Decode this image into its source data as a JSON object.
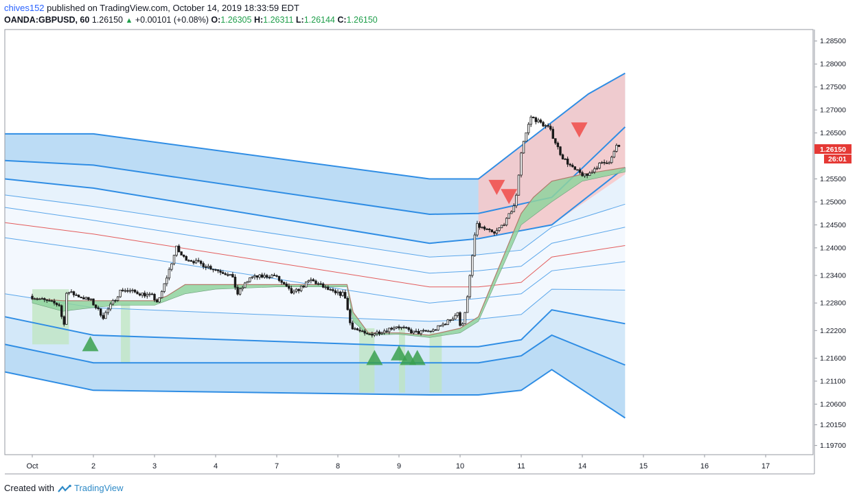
{
  "header": {
    "user": "chives152",
    "published_text": "published on TradingView.com, October 14, 2019 18:33:59 EDT",
    "symbol": "OANDA:GBPUSD, 60",
    "last": "1.26150",
    "change": "+0.00101 (+0.08%)",
    "open_label": "O:",
    "open": "1.26305",
    "high_label": "H:",
    "high": "1.26311",
    "low_label": "L:",
    "low": "1.26144",
    "close_label": "C:",
    "close": "1.26150"
  },
  "footer": {
    "created_with": "Created with",
    "brand": "TradingView"
  },
  "colors": {
    "band_outer": "#bcdcf5",
    "band_mid": "#d3e8f9",
    "band_inner": "#e7f2fc",
    "band_core": "#f3f8fe",
    "band_line": "#2f8de4",
    "thin_line": "#5aa6ea",
    "basis": "#e35b5b",
    "cloud_green": "#8fd49e",
    "cloud_red": "#f2a7a7",
    "zone_red": "#f8c8c8",
    "zone_green": "#bfe6bf",
    "candle": "#1a1a1a",
    "arrow_up": "#3aa04f",
    "arrow_down": "#ef5350",
    "price_label": "#e53935"
  },
  "chart_data": {
    "type": "line",
    "symbol": "OANDA:GBPUSD",
    "interval": "60",
    "ylim": [
      1.195,
      1.2875
    ],
    "x_ticks": [
      "Oct",
      "2",
      "3",
      "4",
      "7",
      "8",
      "9",
      "10",
      "11",
      "14",
      "15",
      "16",
      "17"
    ],
    "y_ticks": [
      "1.28500",
      "1.28000",
      "1.27500",
      "1.27000",
      "1.26500",
      "1.26150",
      "1.25500",
      "1.25000",
      "1.24500",
      "1.24000",
      "1.23400",
      "1.22800",
      "1.22200",
      "1.21600",
      "1.21100",
      "1.20600",
      "1.20150",
      "1.19700"
    ],
    "last_price_label": "1.26150",
    "countdown_label": "26:01",
    "price_path": [
      [
        0.0,
        1.2295
      ],
      [
        0.5,
        1.2275
      ],
      [
        0.55,
        1.2215
      ],
      [
        0.6,
        1.2305
      ],
      [
        1.0,
        1.2285
      ],
      [
        1.2,
        1.225
      ],
      [
        1.5,
        1.231
      ],
      [
        2.0,
        1.2295
      ],
      [
        2.1,
        1.228
      ],
      [
        2.4,
        1.24
      ],
      [
        2.5,
        1.238
      ],
      [
        3.0,
        1.2355
      ],
      [
        3.3,
        1.234
      ],
      [
        3.4,
        1.23
      ],
      [
        3.6,
        1.2335
      ],
      [
        4.0,
        1.234
      ],
      [
        4.3,
        1.23
      ],
      [
        4.6,
        1.233
      ],
      [
        5.0,
        1.23
      ],
      [
        5.15,
        1.23
      ],
      [
        5.25,
        1.223
      ],
      [
        5.5,
        1.221
      ],
      [
        5.8,
        1.222
      ],
      [
        6.0,
        1.223
      ],
      [
        6.3,
        1.2215
      ],
      [
        6.6,
        1.222
      ],
      [
        6.9,
        1.2245
      ],
      [
        7.0,
        1.226
      ],
      [
        7.05,
        1.222
      ],
      [
        7.15,
        1.228
      ],
      [
        7.3,
        1.245
      ],
      [
        7.6,
        1.243
      ],
      [
        7.8,
        1.246
      ],
      [
        7.95,
        1.25
      ],
      [
        8.05,
        1.262
      ],
      [
        8.2,
        1.2685
      ],
      [
        8.5,
        1.266
      ],
      [
        8.7,
        1.26
      ],
      [
        8.9,
        1.257
      ],
      [
        9.1,
        1.2555
      ],
      [
        9.3,
        1.258
      ],
      [
        9.5,
        1.259
      ],
      [
        9.6,
        1.262
      ]
    ],
    "series": [
      {
        "role": "outer-upper",
        "points": [
          [
            -0.45,
            1.2648
          ],
          [
            1,
            1.2648
          ],
          [
            6.5,
            1.255
          ],
          [
            7.3,
            1.255
          ],
          [
            9.1,
            1.2735
          ],
          [
            9.7,
            1.278
          ]
        ]
      },
      {
        "role": "mid-upper",
        "points": [
          [
            -0.45,
            1.259
          ],
          [
            1,
            1.258
          ],
          [
            6.5,
            1.2473
          ],
          [
            7.3,
            1.2475
          ],
          [
            8.5,
            1.251
          ],
          [
            9.7,
            1.2663
          ]
        ]
      },
      {
        "role": "inner-upper",
        "points": [
          [
            -0.45,
            1.255
          ],
          [
            1,
            1.253
          ],
          [
            6.5,
            1.241
          ],
          [
            7.3,
            1.242
          ],
          [
            8.5,
            1.245
          ],
          [
            9.7,
            1.2575
          ]
        ]
      },
      {
        "role": "near-upper",
        "points": [
          [
            -0.45,
            1.2515
          ],
          [
            1,
            1.249
          ],
          [
            6.5,
            1.238
          ],
          [
            7.3,
            1.2385
          ],
          [
            8.0,
            1.2395
          ],
          [
            8.5,
            1.2445
          ],
          [
            9.7,
            1.2495
          ]
        ]
      },
      {
        "role": "upper-thin",
        "points": [
          [
            -0.45,
            1.2488
          ],
          [
            1,
            1.246
          ],
          [
            6.5,
            1.2345
          ],
          [
            7.3,
            1.235
          ],
          [
            8.0,
            1.236
          ],
          [
            8.5,
            1.241
          ],
          [
            9.7,
            1.2445
          ]
        ]
      },
      {
        "role": "basis",
        "points": [
          [
            -0.45,
            1.2455
          ],
          [
            1,
            1.243
          ],
          [
            6.5,
            1.2315
          ],
          [
            7.3,
            1.2315
          ],
          [
            8.0,
            1.2325
          ],
          [
            8.5,
            1.238
          ],
          [
            9.7,
            1.2405
          ]
        ]
      },
      {
        "role": "lower-thin",
        "points": [
          [
            -0.45,
            1.2422
          ],
          [
            1,
            1.2395
          ],
          [
            6.5,
            1.228
          ],
          [
            7.3,
            1.229
          ],
          [
            8.0,
            1.23
          ],
          [
            8.5,
            1.235
          ],
          [
            9.7,
            1.237
          ]
        ]
      },
      {
        "role": "near-lower",
        "points": [
          [
            -0.45,
            1.23
          ],
          [
            1,
            1.227
          ],
          [
            6.5,
            1.224
          ],
          [
            7.3,
            1.2245
          ],
          [
            8.0,
            1.2255
          ],
          [
            8.5,
            1.231
          ],
          [
            9.7,
            1.2308
          ]
        ]
      },
      {
        "role": "inner-lower",
        "points": [
          [
            -0.45,
            1.225
          ],
          [
            1,
            1.221
          ],
          [
            6.5,
            1.2185
          ],
          [
            7.3,
            1.2185
          ],
          [
            8.0,
            1.22
          ],
          [
            8.5,
            1.2265
          ],
          [
            9.7,
            1.2235
          ]
        ]
      },
      {
        "role": "mid-lower",
        "points": [
          [
            -0.45,
            1.219
          ],
          [
            1,
            1.215
          ],
          [
            6.5,
            1.215
          ],
          [
            7.3,
            1.215
          ],
          [
            8.0,
            1.2165
          ],
          [
            8.5,
            1.221
          ],
          [
            9.7,
            1.2145
          ]
        ]
      },
      {
        "role": "outer-lower",
        "points": [
          [
            -0.45,
            1.213
          ],
          [
            1,
            1.209
          ],
          [
            6.5,
            1.208
          ],
          [
            7.3,
            1.208
          ],
          [
            8.0,
            1.209
          ],
          [
            8.5,
            1.2135
          ],
          [
            9.7,
            1.203
          ]
        ]
      }
    ],
    "cloud": [
      [
        0.0,
        1.229,
        1.228
      ],
      [
        0.5,
        1.2285,
        1.2262
      ],
      [
        1.0,
        1.2285,
        1.227
      ],
      [
        1.4,
        1.2285,
        1.2275
      ],
      [
        2.0,
        1.2285,
        1.2275
      ],
      [
        2.2,
        1.2295,
        1.2285
      ],
      [
        2.5,
        1.232,
        1.23
      ],
      [
        3.0,
        1.232,
        1.231
      ],
      [
        4.0,
        1.232,
        1.2315
      ],
      [
        5.0,
        1.232,
        1.2315
      ],
      [
        5.15,
        1.232,
        1.2315
      ],
      [
        5.25,
        1.226,
        1.224
      ],
      [
        5.5,
        1.2215,
        1.221
      ],
      [
        6.0,
        1.2215,
        1.2212
      ],
      [
        6.5,
        1.221,
        1.2205
      ],
      [
        7.0,
        1.2225,
        1.2215
      ],
      [
        7.3,
        1.225,
        1.224
      ],
      [
        8.0,
        1.2475,
        1.245
      ],
      [
        8.2,
        1.251,
        1.247
      ],
      [
        8.5,
        1.2545,
        1.25
      ],
      [
        9.0,
        1.256,
        1.2545
      ],
      [
        9.7,
        1.2575,
        1.2565
      ]
    ],
    "zones": [
      {
        "kind": "red",
        "points": [
          [
            7.3,
            1.255
          ],
          [
            9.1,
            1.2735
          ],
          [
            9.7,
            1.278
          ],
          [
            9.7,
            1.256
          ],
          [
            8.5,
            1.245
          ],
          [
            7.3,
            1.242
          ]
        ]
      },
      {
        "kind": "green",
        "x0": 0.0,
        "x1": 0.6,
        "y0": 1.231,
        "y1": 1.219
      },
      {
        "kind": "green",
        "x0": 1.45,
        "x1": 1.6,
        "y0": 1.228,
        "y1": 1.215
      },
      {
        "kind": "green",
        "x0": 5.35,
        "x1": 5.6,
        "y0": 1.2225,
        "y1": 1.2085
      },
      {
        "kind": "green",
        "x0": 6.0,
        "x1": 6.1,
        "y0": 1.2225,
        "y1": 1.2085
      },
      {
        "kind": "green",
        "x0": 6.5,
        "x1": 6.7,
        "y0": 1.2215,
        "y1": 1.2085
      }
    ],
    "signals": [
      {
        "type": "buy",
        "x": 0.95,
        "y": 1.219
      },
      {
        "type": "buy",
        "x": 5.6,
        "y": 1.216
      },
      {
        "type": "buy",
        "x": 6.0,
        "y": 1.217
      },
      {
        "type": "buy",
        "x": 6.15,
        "y": 1.216
      },
      {
        "type": "buy",
        "x": 6.3,
        "y": 1.216
      },
      {
        "type": "sell",
        "x": 7.6,
        "y": 1.253
      },
      {
        "type": "sell",
        "x": 7.8,
        "y": 1.251
      },
      {
        "type": "sell",
        "x": 8.95,
        "y": 1.2655
      }
    ]
  }
}
